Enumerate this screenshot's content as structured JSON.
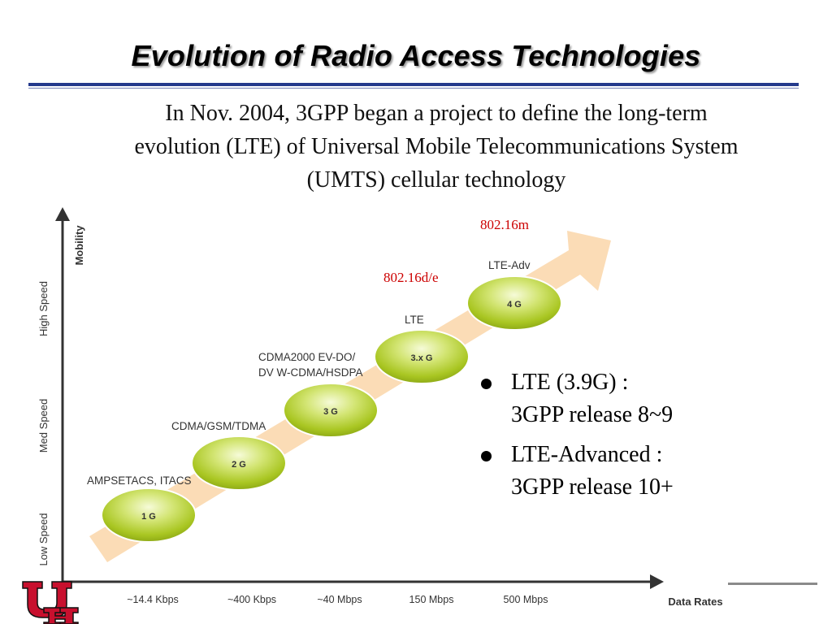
{
  "slide": {
    "title": "Evolution of Radio Access Technologies",
    "intro_lines": [
      "In Nov. 2004, 3GPP began a project to define the long-term",
      "evolution (LTE) of Universal Mobile Telecommunications System",
      "(UMTS) cellular technology"
    ]
  },
  "diagram": {
    "y_axis_title": "Mobility",
    "y_levels": [
      "Low Speed",
      "Med Speed",
      "High Speed"
    ],
    "x_axis_title": "Data Rates",
    "x_ticks": [
      "~14.4 Kbps",
      "~400 Kbps",
      "~40 Mbps",
      "150 Mbps",
      "500 Mbps"
    ],
    "generations": [
      {
        "label": "1 G",
        "caption": "AMPSETACS, ITACS"
      },
      {
        "label": "2 G",
        "caption": "CDMA/GSM/TDMA"
      },
      {
        "label": "3 G",
        "caption_lines": [
          "CDMA2000 EV-DO/",
          "DV W-CDMA/HSDPA"
        ]
      },
      {
        "label": "3.x G",
        "caption": "LTE"
      },
      {
        "label": "4 G",
        "caption": "LTE-Adv"
      }
    ],
    "ieee_labels": [
      "802.16d/e",
      "802.16m"
    ],
    "colors": {
      "ieee_text": "#cc0000",
      "arrow": "#fbdcb6",
      "bubble": "#b2cc2c",
      "axis": "#333333"
    }
  },
  "bullets": [
    {
      "lines": [
        "LTE (3.9G) :",
        "3GPP release 8~9"
      ]
    },
    {
      "lines": [
        "LTE-Advanced :",
        "3GPP release 10+"
      ]
    }
  ]
}
